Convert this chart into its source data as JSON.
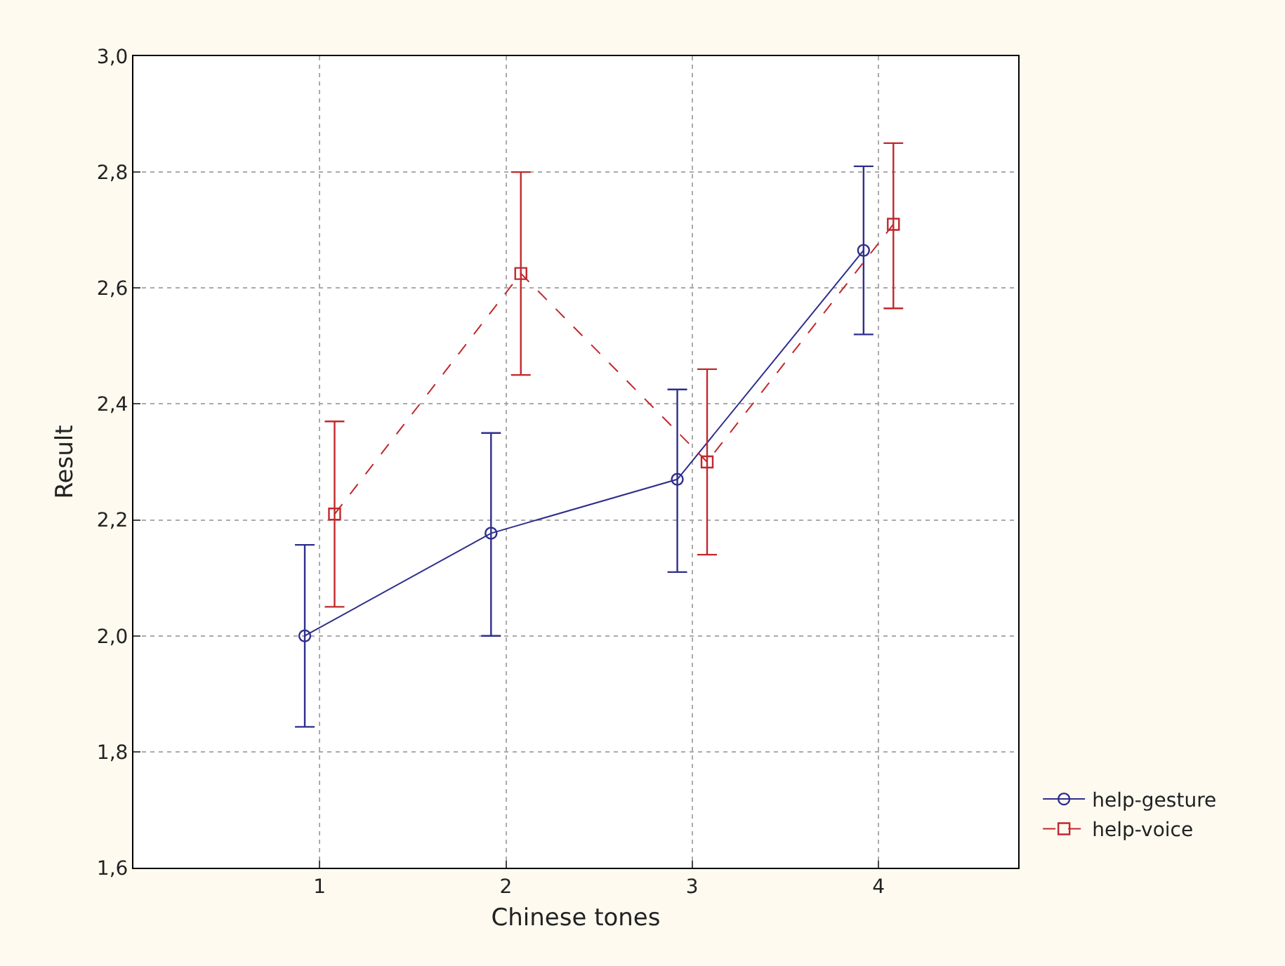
{
  "chart_data": {
    "type": "line",
    "xlabel": "Chinese tones",
    "ylabel": "Result",
    "xlim": [
      0,
      4.75
    ],
    "xticks": [
      1,
      2,
      3,
      4
    ],
    "ylim": [
      1.6,
      3.0
    ],
    "yticks": [
      {
        "value": 1.6,
        "label": "1,6"
      },
      {
        "value": 1.8,
        "label": "1,8"
      },
      {
        "value": 2.0,
        "label": "2,0"
      },
      {
        "value": 2.2,
        "label": "2,2"
      },
      {
        "value": 2.4,
        "label": "2,4"
      },
      {
        "value": 2.6,
        "label": "2,6"
      },
      {
        "value": 2.8,
        "label": "2,8"
      },
      {
        "value": 3.0,
        "label": "3,0"
      }
    ],
    "grid": true,
    "legend": "bottom right",
    "series": [
      {
        "name": "help-gesture",
        "color": "#2e2e8c",
        "x": [
          0.92,
          1.92,
          2.92,
          3.92
        ],
        "marker": "circle",
        "line_style": "solid",
        "values": [
          2.0,
          2.177,
          2.27,
          2.665
        ],
        "errors": [
          [
            1.843,
            2.157
          ],
          [
            2.0,
            2.35
          ],
          [
            2.11,
            2.425
          ],
          [
            2.52,
            2.81
          ]
        ]
      },
      {
        "name": "help-voice",
        "color": "#c0282d",
        "x": [
          1.08,
          2.08,
          3.08,
          4.08
        ],
        "marker": "square",
        "line_style": "dashed",
        "values": [
          2.21,
          2.625,
          2.3,
          2.71
        ],
        "errors": [
          [
            2.05,
            2.37
          ],
          [
            2.45,
            2.8
          ],
          [
            2.14,
            2.46
          ],
          [
            2.565,
            2.85
          ]
        ]
      }
    ]
  }
}
